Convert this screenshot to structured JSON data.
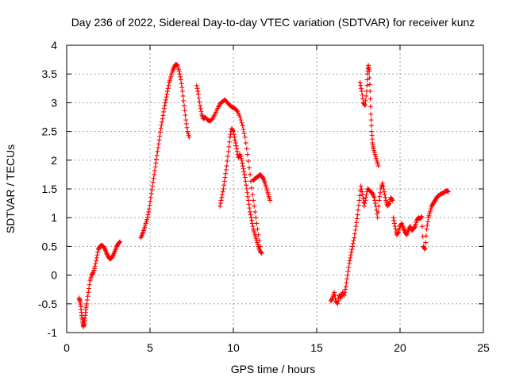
{
  "chart_data": {
    "type": "scatter",
    "title": "Day 236 of 2022, Sidereal Day-to-day VTEC variation (SDTVAR) for receiver kunz",
    "xlabel": "GPS time / hours",
    "ylabel": "SDTVAR / TECUs",
    "xlim": [
      0,
      25
    ],
    "ylim": [
      -1,
      4
    ],
    "xticks": [
      0,
      5,
      10,
      15,
      20,
      25
    ],
    "xtick_labels": [
      "0",
      "5",
      "10",
      "15",
      "20",
      "25"
    ],
    "yticks": [
      -1,
      -0.5,
      0,
      0.5,
      1,
      1.5,
      2,
      2.5,
      3,
      3.5,
      4
    ],
    "ytick_labels": [
      "-1",
      "-0.5",
      "0",
      "0.5",
      "1",
      "1.5",
      "2",
      "2.5",
      "3",
      "3.5",
      "4"
    ],
    "grid": true,
    "marker": "+",
    "color": "#ff0000",
    "series": [
      {
        "name": "segment-1",
        "x": [
          0.75,
          0.8,
          0.85,
          0.9,
          0.95,
          1.0,
          1.05,
          1.1,
          1.15,
          1.2,
          1.3,
          1.4,
          1.5,
          1.6,
          1.7,
          1.8,
          1.9,
          2.0,
          2.1,
          2.2,
          2.3,
          2.4,
          2.5,
          2.6,
          2.7,
          2.8,
          2.9,
          3.0,
          3.1,
          3.2
        ],
        "y": [
          -0.4,
          -0.45,
          -0.55,
          -0.7,
          -0.8,
          -0.9,
          -0.85,
          -0.75,
          -0.6,
          -0.5,
          -0.3,
          -0.1,
          0.0,
          0.05,
          0.15,
          0.3,
          0.45,
          0.5,
          0.52,
          0.5,
          0.45,
          0.38,
          0.32,
          0.28,
          0.3,
          0.35,
          0.42,
          0.5,
          0.55,
          0.58
        ]
      },
      {
        "name": "segment-2",
        "x": [
          4.45,
          4.55,
          4.65,
          4.75,
          4.85,
          4.95,
          5.05,
          5.15,
          5.25,
          5.35,
          5.45,
          5.55,
          5.65,
          5.75,
          5.85,
          5.95,
          6.05,
          6.15,
          6.25,
          6.35,
          6.45,
          6.55,
          6.65,
          6.75,
          6.85,
          6.95,
          7.05,
          7.15,
          7.25,
          7.35
        ],
        "y": [
          0.65,
          0.72,
          0.8,
          0.9,
          1.0,
          1.15,
          1.35,
          1.55,
          1.75,
          1.95,
          2.15,
          2.35,
          2.55,
          2.72,
          2.9,
          3.05,
          3.2,
          3.35,
          3.45,
          3.55,
          3.62,
          3.67,
          3.65,
          3.55,
          3.4,
          3.2,
          2.95,
          2.7,
          2.5,
          2.4
        ]
      },
      {
        "name": "segment-3",
        "x": [
          7.8,
          7.9,
          8.0,
          8.1,
          8.2,
          8.3,
          8.45,
          8.6,
          8.75,
          8.9,
          9.05,
          9.2,
          9.35,
          9.5,
          9.65,
          9.8,
          9.95,
          10.1,
          10.25,
          10.4,
          10.55,
          10.7,
          10.85,
          11.0,
          11.15,
          11.3,
          11.45,
          11.6
        ],
        "y": [
          3.3,
          3.15,
          2.95,
          2.8,
          2.72,
          2.75,
          2.7,
          2.68,
          2.72,
          2.8,
          2.9,
          2.98,
          3.02,
          3.05,
          3.0,
          2.95,
          2.92,
          2.9,
          2.85,
          2.75,
          2.6,
          2.4,
          2.1,
          1.75,
          1.4,
          1.1,
          0.8,
          0.5
        ]
      },
      {
        "name": "segment-4",
        "x": [
          9.2,
          9.3,
          9.4,
          9.5,
          9.6,
          9.7,
          9.8,
          9.9,
          10.0,
          10.1,
          10.2,
          10.3,
          10.4,
          10.5,
          10.6,
          10.7,
          10.8,
          10.9,
          11.0,
          11.1,
          11.2,
          11.3,
          11.4,
          11.5,
          11.6,
          11.7
        ],
        "y": [
          1.2,
          1.35,
          1.5,
          1.7,
          1.9,
          2.15,
          2.4,
          2.55,
          2.5,
          2.35,
          2.2,
          2.05,
          2.1,
          2.0,
          1.85,
          1.7,
          1.5,
          1.3,
          1.1,
          0.95,
          0.8,
          0.7,
          0.6,
          0.5,
          0.42,
          0.38
        ]
      },
      {
        "name": "segment-5",
        "x": [
          11.2,
          11.3,
          11.4,
          11.5,
          11.6,
          11.7,
          11.8,
          11.9,
          12.0,
          12.1,
          12.2
        ],
        "y": [
          1.65,
          1.68,
          1.7,
          1.72,
          1.75,
          1.72,
          1.68,
          1.6,
          1.5,
          1.4,
          1.3
        ]
      },
      {
        "name": "segment-6",
        "x": [
          15.85,
          15.95,
          16.05,
          16.15,
          16.25,
          16.35,
          16.45,
          16.55,
          16.65,
          16.75,
          16.85,
          16.95,
          17.05,
          17.15,
          17.25,
          17.35,
          17.45,
          17.55,
          17.65,
          17.75,
          17.85,
          17.95,
          18.05,
          18.15,
          18.25,
          18.35,
          18.45,
          18.55,
          18.65,
          18.75,
          18.85,
          18.95,
          19.05,
          19.15,
          19.25,
          19.35,
          19.45,
          19.55
        ],
        "y": [
          -0.45,
          -0.4,
          -0.3,
          -0.45,
          -0.5,
          -0.35,
          -0.4,
          -0.3,
          -0.35,
          -0.2,
          0.0,
          0.2,
          0.35,
          0.5,
          0.65,
          0.85,
          1.05,
          1.3,
          1.55,
          1.4,
          1.2,
          1.35,
          1.5,
          1.48,
          1.45,
          1.42,
          1.35,
          1.2,
          1.0,
          1.3,
          1.5,
          1.6,
          1.45,
          1.3,
          1.2,
          1.25,
          1.35,
          1.3
        ]
      },
      {
        "name": "segment-7",
        "x": [
          17.6,
          17.7,
          17.8,
          17.9,
          18.0,
          18.05,
          18.1,
          18.15,
          18.2,
          18.25,
          18.3,
          18.35,
          18.4,
          18.5,
          18.6,
          18.7
        ],
        "y": [
          3.35,
          3.2,
          3.0,
          2.95,
          3.2,
          3.5,
          3.65,
          3.55,
          3.2,
          2.8,
          2.5,
          2.3,
          2.2,
          2.1,
          2.0,
          1.9
        ]
      },
      {
        "name": "segment-8",
        "x": [
          19.6,
          19.7,
          19.8,
          19.9,
          20.0,
          20.1,
          20.2,
          20.3,
          20.4,
          20.5,
          20.6,
          20.7,
          20.8,
          20.9,
          21.0,
          21.1,
          21.2,
          21.3,
          21.4,
          21.5,
          21.6,
          21.7,
          21.8,
          21.9,
          22.0,
          22.1,
          22.2,
          22.3,
          22.4,
          22.5,
          22.6,
          22.7,
          22.8,
          22.9
        ],
        "y": [
          1.0,
          0.85,
          0.7,
          0.75,
          0.85,
          0.9,
          0.82,
          0.75,
          0.7,
          0.78,
          0.85,
          0.78,
          0.8,
          0.85,
          0.95,
          1.0,
          0.98,
          1.02,
          0.5,
          0.45,
          0.8,
          1.0,
          1.1,
          1.2,
          1.25,
          1.3,
          1.35,
          1.38,
          1.4,
          1.42,
          1.43,
          1.45,
          1.47,
          1.45
        ]
      }
    ]
  }
}
